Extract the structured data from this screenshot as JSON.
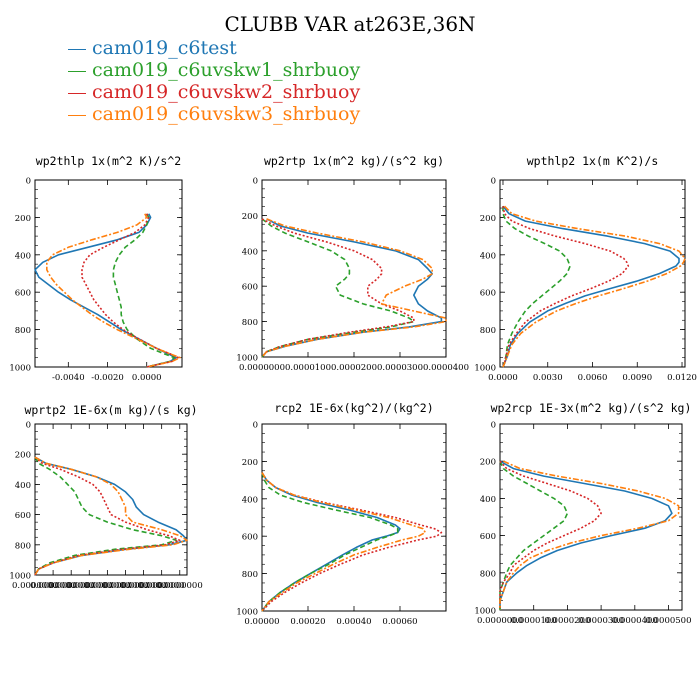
{
  "title": "CLUBB VAR at263E,36N",
  "legend": [
    {
      "name": "cam019_c6test",
      "color": "#1f77b4",
      "dash": ""
    },
    {
      "name": "cam019_c6uvskw1_shrbuoy",
      "color": "#2ca02c",
      "dash": "5,3"
    },
    {
      "name": "cam019_c6uvskw2_shrbuoy",
      "color": "#d62728",
      "dash": "2,2"
    },
    {
      "name": "cam019_c6uvskw3_shrbuoy",
      "color": "#ff7f0e",
      "dash": "6,2,2,2"
    }
  ],
  "chart_data": [
    {
      "type": "line",
      "title": "wp2thlp  1x(m^2 K)/s^2",
      "xlim": [
        -0.0057,
        0.0018
      ],
      "ylim": [
        1000,
        0
      ],
      "xticks": [
        -0.004,
        -0.002,
        0.0
      ],
      "xtick_labels": [
        "-0.0040",
        "-0.0020",
        "0.0000"
      ],
      "yticks": [
        0,
        200,
        400,
        600,
        800,
        1000
      ],
      "ytick_labels": [
        "0",
        "200",
        "400",
        "600",
        "800",
        "1000"
      ],
      "y": [
        180,
        200,
        240,
        280,
        320,
        360,
        400,
        440,
        480,
        520,
        560,
        600,
        640,
        680,
        720,
        760,
        800,
        850,
        900,
        930,
        950,
        970,
        1000
      ],
      "series": [
        {
          "name": "cam019_c6test",
          "x": [
            0.0001,
            0.0002,
            0.0,
            -0.0004,
            -0.0015,
            -0.003,
            -0.0045,
            -0.0053,
            -0.0057,
            -0.0055,
            -0.005,
            -0.0045,
            -0.0039,
            -0.0032,
            -0.0025,
            -0.0019,
            -0.0013,
            -0.0004,
            0.0005,
            0.0011,
            0.0015,
            0.0012,
            0.0
          ]
        },
        {
          "name": "cam019_c6uvskw1_shrbuoy",
          "x": [
            0.0,
            0.0001,
            0.0,
            -0.0002,
            -0.0006,
            -0.0011,
            -0.0014,
            -0.0016,
            -0.0017,
            -0.0017,
            -0.0016,
            -0.0015,
            -0.0014,
            -0.0013,
            -0.0013,
            -0.0012,
            -0.001,
            -0.0005,
            0.0002,
            0.0009,
            0.0014,
            0.0012,
            0.0
          ]
        },
        {
          "name": "cam019_c6uvskw2_shrbuoy",
          "x": [
            0.0,
            0.0001,
            -0.0001,
            -0.0006,
            -0.0014,
            -0.0022,
            -0.0029,
            -0.0032,
            -0.0033,
            -0.0033,
            -0.0031,
            -0.0029,
            -0.0027,
            -0.0024,
            -0.0021,
            -0.0017,
            -0.0012,
            -0.0004,
            0.0005,
            0.0012,
            0.0016,
            0.0013,
            0.0
          ]
        },
        {
          "name": "cam019_c6uvskw3_shrbuoy",
          "x": [
            -0.0001,
            0.0,
            -0.0005,
            -0.0015,
            -0.0028,
            -0.004,
            -0.0048,
            -0.0051,
            -0.0051,
            -0.0049,
            -0.0046,
            -0.0042,
            -0.0038,
            -0.0033,
            -0.0028,
            -0.0022,
            -0.0015,
            -0.0005,
            0.0005,
            0.0012,
            0.0017,
            0.0013,
            0.0
          ]
        }
      ]
    },
    {
      "type": "line",
      "title": "wp2rtp  1x(m^2 kg)/(s^2 kg)",
      "xlim": [
        0.0,
        4e-05
      ],
      "ylim": [
        1000,
        0
      ],
      "xticks": [
        0.0,
        1e-05,
        2e-05,
        3e-05,
        4e-05
      ],
      "xtick_labels": [
        "0.0000000",
        "0.0000100",
        "0.0000200",
        "0.0000300",
        "0.0000400"
      ],
      "yticks": [
        0,
        200,
        400,
        600,
        800,
        1000
      ],
      "ytick_labels": [
        "0",
        "200",
        "400",
        "600",
        "800",
        "1000"
      ],
      "y": [
        220,
        260,
        300,
        350,
        400,
        450,
        500,
        530,
        560,
        600,
        650,
        700,
        740,
        780,
        800,
        830,
        860,
        900,
        940,
        970,
        1000
      ],
      "series": [
        {
          "name": "cam019_c6test",
          "x": [
            1e-06,
            4e-06,
            1e-05,
            2e-05,
            2.9e-05,
            3.4e-05,
            3.6e-05,
            3.7e-05,
            3.6e-05,
            3.4e-05,
            3.3e-05,
            3.4e-05,
            3.6e-05,
            3.9e-05,
            3.9e-05,
            3.2e-05,
            2.2e-05,
            1.2e-05,
            5e-06,
            1e-06,
            0.0
          ]
        },
        {
          "name": "cam019_c6uvskw1_shrbuoy",
          "x": [
            0.0,
            2e-06,
            5e-06,
            1e-05,
            1.5e-05,
            1.8e-05,
            1.9e-05,
            1.9e-05,
            1.8e-05,
            1.6e-05,
            1.7e-05,
            2.2e-05,
            2.8e-05,
            3.2e-05,
            3.3e-05,
            2.8e-05,
            2e-05,
            1e-05,
            4e-06,
            1e-06,
            0.0
          ]
        },
        {
          "name": "cam019_c6uvskw2_shrbuoy",
          "x": [
            0.0,
            3e-06,
            7e-06,
            1.4e-05,
            2e-05,
            2.4e-05,
            2.6e-05,
            2.6e-05,
            2.5e-05,
            2.3e-05,
            2.3e-05,
            2.6e-05,
            3e-05,
            3.3e-05,
            3.3e-05,
            2.7e-05,
            1.9e-05,
            1e-05,
            4e-06,
            1e-06,
            0.0
          ]
        },
        {
          "name": "cam019_c6uvskw3_shrbuoy",
          "x": [
            1e-06,
            5e-06,
            1.2e-05,
            2.2e-05,
            3e-05,
            3.5e-05,
            3.7e-05,
            3.7e-05,
            3.5e-05,
            3.1e-05,
            2.7e-05,
            2.6e-05,
            3.3e-05,
            4e-05,
            4e-05,
            3.3e-05,
            2.2e-05,
            1.2e-05,
            5e-06,
            1e-06,
            0.0
          ]
        }
      ]
    },
    {
      "type": "line",
      "title": "wpthlp2  1x(m K^2)/s",
      "xlim": [
        -0.0002,
        0.0122
      ],
      "ylim": [
        1000,
        0
      ],
      "xticks": [
        0.0,
        0.003,
        0.006,
        0.009,
        0.012
      ],
      "xtick_labels": [
        "0.0000",
        "0.0030",
        "0.0060",
        "0.0090",
        "0.0120"
      ],
      "yticks": [
        0,
        200,
        400,
        600,
        800,
        1000
      ],
      "ytick_labels": [
        "0",
        "200",
        "400",
        "600",
        "800",
        "1000"
      ],
      "y": [
        140,
        180,
        220,
        260,
        300,
        340,
        380,
        420,
        440,
        460,
        500,
        540,
        580,
        620,
        660,
        700,
        760,
        820,
        880,
        940,
        980,
        1000
      ],
      "series": [
        {
          "name": "cam019_c6test",
          "x": [
            0.0,
            0.0004,
            0.0015,
            0.004,
            0.007,
            0.0095,
            0.0112,
            0.0118,
            0.0118,
            0.0116,
            0.0105,
            0.009,
            0.0072,
            0.0055,
            0.0042,
            0.003,
            0.0018,
            0.001,
            0.0005,
            0.0003,
            0.0001,
            0.0
          ]
        },
        {
          "name": "cam019_c6uvskw1_shrbuoy",
          "x": [
            0.0,
            0.0,
            0.0002,
            0.0008,
            0.0017,
            0.0028,
            0.0038,
            0.0043,
            0.0044,
            0.0045,
            0.0043,
            0.0038,
            0.0032,
            0.0026,
            0.002,
            0.0015,
            0.001,
            0.0006,
            0.0003,
            0.0002,
            0.0001,
            0.0
          ]
        },
        {
          "name": "cam019_c6uvskw2_shrbuoy",
          "x": [
            0.0,
            0.0001,
            0.0006,
            0.0018,
            0.0035,
            0.0055,
            0.0072,
            0.0081,
            0.0083,
            0.0084,
            0.008,
            0.0071,
            0.0059,
            0.0046,
            0.0035,
            0.0025,
            0.0015,
            0.0009,
            0.0004,
            0.0002,
            0.0001,
            0.0
          ]
        },
        {
          "name": "cam019_c6uvskw3_shrbuoy",
          "x": [
            0.0001,
            0.0006,
            0.0022,
            0.005,
            0.0082,
            0.0105,
            0.0118,
            0.0122,
            0.0121,
            0.0119,
            0.011,
            0.0097,
            0.0081,
            0.0064,
            0.0049,
            0.0036,
            0.0022,
            0.0012,
            0.0006,
            0.0003,
            0.0001,
            0.0
          ]
        }
      ]
    },
    {
      "type": "line",
      "title": "wprtp2  1E-6x(m kg)/(s kg)",
      "xlim": [
        0.0,
        0.00042
      ],
      "ylim": [
        1000,
        0
      ],
      "xticks": [
        0.0,
        5e-05,
        0.0001,
        0.00015,
        0.0002,
        0.00025,
        0.0003,
        0.00035,
        0.0004
      ],
      "xtick_labels": [
        "0.0000000",
        "0.0000000",
        "0.0000000",
        "0.0000000",
        "0.0000000",
        "0.0000000",
        "0.0000000",
        "0.0000000",
        "0.0000000"
      ],
      "yticks": [
        0,
        200,
        400,
        600,
        800,
        1000
      ],
      "ytick_labels": [
        "0",
        "200",
        "400",
        "600",
        "800",
        "1000"
      ],
      "y": [
        220,
        260,
        300,
        350,
        400,
        450,
        500,
        550,
        600,
        650,
        700,
        740,
        770,
        800,
        830,
        870,
        920,
        960,
        1000
      ],
      "series": [
        {
          "name": "cam019_c6test",
          "x": [
            0.0,
            3e-05,
            0.0001,
            0.00017,
            0.00022,
            0.00025,
            0.00027,
            0.00028,
            0.0003,
            0.00034,
            0.00039,
            0.00041,
            0.00042,
            0.00037,
            0.00025,
            0.00013,
            5e-05,
            1e-05,
            0.0
          ]
        },
        {
          "name": "cam019_c6uvskw1_shrbuoy",
          "x": [
            0.0,
            1e-05,
            4e-05,
            7e-05,
            9e-05,
            0.00011,
            0.00012,
            0.00013,
            0.00015,
            0.0002,
            0.00027,
            0.00035,
            0.00039,
            0.00035,
            0.00022,
            0.00011,
            4e-05,
            1e-05,
            0.0
          ]
        },
        {
          "name": "cam019_c6uvskw2_shrbuoy",
          "x": [
            0.0,
            2e-05,
            7e-05,
            0.00012,
            0.00016,
            0.00018,
            0.00019,
            0.0002,
            0.00021,
            0.00025,
            0.00031,
            0.00037,
            0.0004,
            0.00036,
            0.00024,
            0.00012,
            5e-05,
            1e-05,
            0.0
          ]
        },
        {
          "name": "cam019_c6uvskw3_shrbuoy",
          "x": [
            0.0,
            3e-05,
            0.0001,
            0.00017,
            0.00021,
            0.00023,
            0.00024,
            0.00025,
            0.00025,
            0.00027,
            0.00035,
            0.0004,
            0.00042,
            0.00038,
            0.00026,
            0.00013,
            5e-05,
            1e-05,
            0.0
          ]
        }
      ]
    },
    {
      "type": "line",
      "title": "rcp2  1E-6x(kg^2)/(kg^2)",
      "xlim": [
        0.0,
        0.0008
      ],
      "ylim": [
        1000,
        0
      ],
      "xticks": [
        0.0,
        0.0002,
        0.0004,
        0.0006
      ],
      "xtick_labels": [
        "0.00000",
        "0.00020",
        "0.00040",
        "0.00060"
      ],
      "yticks": [
        0,
        200,
        400,
        600,
        800,
        1000
      ],
      "ytick_labels": [
        "0",
        "200",
        "400",
        "600",
        "800",
        "1000"
      ],
      "y": [
        260,
        300,
        340,
        380,
        420,
        460,
        500,
        540,
        560,
        580,
        600,
        620,
        660,
        700,
        750,
        800,
        850,
        900,
        950,
        1000
      ],
      "series": [
        {
          "name": "cam019_c6test",
          "x": [
            0.0,
            2e-05,
            6e-05,
            0.00013,
            0.00024,
            0.00038,
            0.0005,
            0.00058,
            0.0006,
            0.00059,
            0.00054,
            0.00048,
            0.00041,
            0.00035,
            0.00028,
            0.00021,
            0.00014,
            8e-05,
            3e-05,
            0.0
          ]
        },
        {
          "name": "cam019_c6uvskw1_shrbuoy",
          "x": [
            0.0,
            1e-05,
            3e-05,
            8e-05,
            0.00018,
            0.00032,
            0.00047,
            0.00056,
            0.00059,
            0.00059,
            0.00055,
            0.0005,
            0.00043,
            0.00036,
            0.00029,
            0.00021,
            0.00014,
            8e-05,
            3e-05,
            0.0
          ]
        },
        {
          "name": "cam019_c6uvskw2_shrbuoy",
          "x": [
            0.0,
            2e-05,
            6e-05,
            0.00014,
            0.00027,
            0.00043,
            0.00058,
            0.00069,
            0.00075,
            0.00078,
            0.00076,
            0.00068,
            0.00055,
            0.00044,
            0.00034,
            0.00025,
            0.00017,
            0.0001,
            4e-05,
            0.0
          ]
        },
        {
          "name": "cam019_c6uvskw3_shrbuoy",
          "x": [
            0.0,
            2e-05,
            6e-05,
            0.00014,
            0.00026,
            0.00041,
            0.00055,
            0.00065,
            0.0007,
            0.00071,
            0.00068,
            0.00061,
            0.0005,
            0.0004,
            0.00031,
            0.00023,
            0.00015,
            9e-05,
            3e-05,
            0.0
          ]
        }
      ]
    },
    {
      "type": "line",
      "title": "wp2rcp  1E-3x(m^2 kg)/(s^2 kg)",
      "xlim": [
        0.0,
        5.4e-05
      ],
      "ylim": [
        1000,
        0
      ],
      "xticks": [
        0.0,
        1e-05,
        2e-05,
        3e-05,
        4e-05,
        5e-05
      ],
      "xtick_labels": [
        "0.0000000",
        "0.0000100",
        "0.0000200",
        "0.0000300",
        "0.0000400",
        "0.0000500"
      ],
      "yticks": [
        0,
        200,
        400,
        600,
        800,
        1000
      ],
      "ytick_labels": [
        "0",
        "200",
        "400",
        "600",
        "800",
        "1000"
      ],
      "y": [
        200,
        240,
        280,
        320,
        360,
        400,
        440,
        480,
        520,
        560,
        600,
        640,
        680,
        720,
        760,
        800,
        850,
        900,
        950,
        1000
      ],
      "series": [
        {
          "name": "cam019_c6test",
          "x": [
            0.0,
            4e-06,
            1.3e-05,
            2.5e-05,
            3.7e-05,
            4.5e-05,
            5e-05,
            5.1e-05,
            4.9e-05,
            4.3e-05,
            3.3e-05,
            2.4e-05,
            1.7e-05,
            1.2e-05,
            8e-06,
            5e-06,
            2e-06,
            1e-06,
            0.0,
            0.0
          ]
        },
        {
          "name": "cam019_c6uvskw1_shrbuoy",
          "x": [
            0.0,
            1e-06,
            4e-06,
            8e-06,
            1.2e-05,
            1.6e-05,
            1.9e-05,
            2e-05,
            1.9e-05,
            1.6e-05,
            1.3e-05,
            1e-05,
            7e-06,
            5e-06,
            3e-06,
            2e-06,
            1e-06,
            0.0,
            0.0,
            0.0
          ]
        },
        {
          "name": "cam019_c6uvskw2_shrbuoy",
          "x": [
            0.0,
            2e-06,
            7e-06,
            1.4e-05,
            2.1e-05,
            2.6e-05,
            2.9e-05,
            3e-05,
            2.8e-05,
            2.4e-05,
            1.9e-05,
            1.4e-05,
            1e-05,
            7e-06,
            4e-06,
            3e-06,
            1e-06,
            0.0,
            0.0,
            0.0
          ]
        },
        {
          "name": "cam019_c6uvskw3_shrbuoy",
          "x": [
            1e-06,
            6e-06,
            1.7e-05,
            3e-05,
            4.1e-05,
            4.9e-05,
            5.3e-05,
            5.3e-05,
            5e-05,
            4.1e-05,
            3e-05,
            2.1e-05,
            1.4e-05,
            9e-06,
            6e-06,
            4e-06,
            2e-06,
            1e-06,
            0.0,
            0.0
          ]
        }
      ]
    }
  ]
}
